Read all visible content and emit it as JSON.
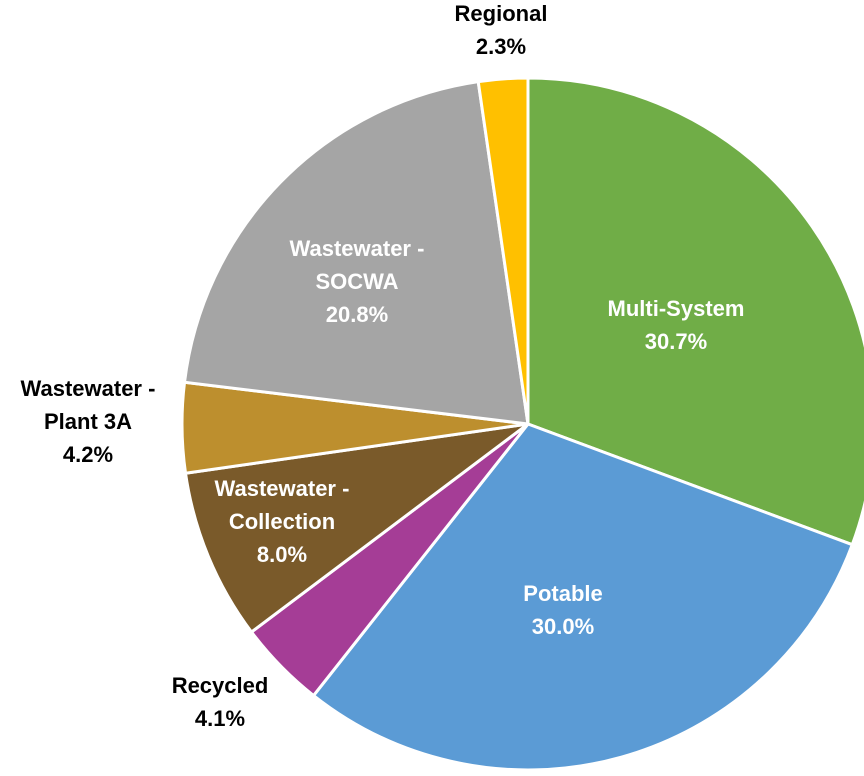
{
  "chart_data": {
    "type": "pie",
    "title": "",
    "start_angle_deg": 0,
    "direction": "clockwise",
    "slice_border_color": "#ffffff",
    "slices": [
      {
        "name": "Multi-System",
        "label_lines": [
          "Multi-System"
        ],
        "value": 30.7,
        "value_label": "30.7%",
        "color": "#70AD47",
        "label_color": "#ffffff",
        "label_placement": "inside"
      },
      {
        "name": "Potable",
        "label_lines": [
          "Potable"
        ],
        "value": 30.0,
        "value_label": "30.0%",
        "color": "#5B9BD5",
        "label_color": "#ffffff",
        "label_placement": "inside"
      },
      {
        "name": "Recycled",
        "label_lines": [
          "Recycled"
        ],
        "value": 4.1,
        "value_label": "4.1%",
        "color": "#A53D96",
        "label_color": "#000000",
        "label_placement": "outside"
      },
      {
        "name": "Wastewater - Collection",
        "label_lines": [
          "Wastewater -",
          "Collection"
        ],
        "value": 8.0,
        "value_label": "8.0%",
        "color": "#7A5A2A",
        "label_color": "#ffffff",
        "label_placement": "inside"
      },
      {
        "name": "Wastewater - Plant 3A",
        "label_lines": [
          "Wastewater -",
          "Plant 3A"
        ],
        "value": 4.2,
        "value_label": "4.2%",
        "color": "#BD8F2E",
        "label_color": "#000000",
        "label_placement": "outside"
      },
      {
        "name": "Wastewater - SOCWA",
        "label_lines": [
          "Wastewater -",
          "SOCWA"
        ],
        "value": 20.8,
        "value_label": "20.8%",
        "color": "#A5A5A5",
        "label_color": "#ffffff",
        "label_placement": "inside"
      },
      {
        "name": "Regional",
        "label_lines": [
          "Regional"
        ],
        "value": 2.3,
        "value_label": "2.3%",
        "color": "#FFC000",
        "label_color": "#000000",
        "label_placement": "outside"
      }
    ]
  }
}
